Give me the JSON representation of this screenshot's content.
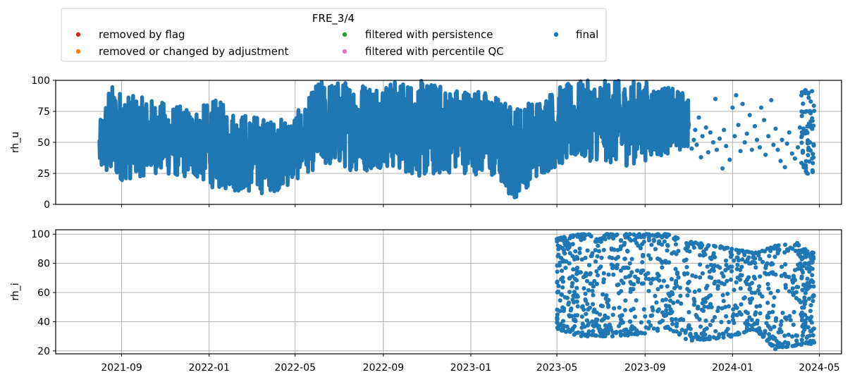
{
  "legend": {
    "title": "FRE_3/4",
    "entries": [
      {
        "label": "removed by flag",
        "color": "#d62728"
      },
      {
        "label": "removed or changed by adjustment",
        "color": "#ff7f0e"
      },
      {
        "label": "filtered with persistence",
        "color": "#2ca02c"
      },
      {
        "label": "filtered with percentile QC",
        "color": "#e377c2"
      },
      {
        "label": "final",
        "color": "#1f77b4"
      }
    ]
  },
  "chart_data": [
    {
      "type": "scatter",
      "ylabel": "rh_u",
      "ylim": [
        0,
        100
      ],
      "yticks": [
        0,
        25,
        50,
        75,
        100
      ],
      "ytick_labels": [
        "0",
        "25",
        "50",
        "75",
        "100"
      ],
      "xlim": [
        "2021-06-01",
        "2024-06-01"
      ],
      "xtick_labels": [
        "2021-09",
        "2022-01",
        "2022-05",
        "2022-09",
        "2023-01",
        "2023-05",
        "2023-09",
        "2024-01",
        "2024-05"
      ],
      "grid": true,
      "x_tick_labels_visible": false,
      "series": [
        {
          "name": "final",
          "color": "#1f77b4",
          "dense_range": {
            "start": "2021-08-01",
            "end": "2023-11-01"
          },
          "band": [
            [
              "2021-08-01",
              25,
              65
            ],
            [
              "2021-08-15",
              18,
              98
            ],
            [
              "2021-09-15",
              20,
              88
            ],
            [
              "2021-10-15",
              25,
              85
            ],
            [
              "2021-11-15",
              22,
              80
            ],
            [
              "2021-12-15",
              20,
              78
            ],
            [
              "2022-01-10",
              12,
              85
            ],
            [
              "2022-02-10",
              10,
              75
            ],
            [
              "2022-03-10",
              8,
              72
            ],
            [
              "2022-04-01",
              10,
              68
            ],
            [
              "2022-04-25",
              15,
              72
            ],
            [
              "2022-05-15",
              25,
              80
            ],
            [
              "2022-06-01",
              28,
              100
            ],
            [
              "2022-07-01",
              30,
              100
            ],
            [
              "2022-08-01",
              25,
              100
            ],
            [
              "2022-09-01",
              30,
              100
            ],
            [
              "2022-10-01",
              25,
              100
            ],
            [
              "2022-11-01",
              20,
              100
            ],
            [
              "2022-12-01",
              25,
              95
            ],
            [
              "2023-01-01",
              25,
              95
            ],
            [
              "2023-02-01",
              20,
              90
            ],
            [
              "2023-03-01",
              3,
              80
            ],
            [
              "2023-04-01",
              20,
              85
            ],
            [
              "2023-05-01",
              30,
              95
            ],
            [
              "2023-06-01",
              35,
              100
            ],
            [
              "2023-07-01",
              35,
              100
            ],
            [
              "2023-08-01",
              30,
              100
            ],
            [
              "2023-09-01",
              35,
              100
            ],
            [
              "2023-10-01",
              40,
              95
            ],
            [
              "2023-11-01",
              45,
              90
            ]
          ],
          "sparse_points": [
            [
              "2023-11-05",
              45
            ],
            [
              "2023-11-08",
              52
            ],
            [
              "2023-11-10",
              60
            ],
            [
              "2023-11-12",
              48
            ],
            [
              "2023-11-15",
              70
            ],
            [
              "2023-11-18",
              38
            ],
            [
              "2023-11-20",
              55
            ],
            [
              "2023-11-25",
              62
            ],
            [
              "2023-11-28",
              42
            ],
            [
              "2023-12-01",
              58
            ],
            [
              "2023-12-05",
              50
            ],
            [
              "2023-12-08",
              85
            ],
            [
              "2023-12-10",
              44
            ],
            [
              "2023-12-14",
              53
            ],
            [
              "2023-12-18",
              29
            ],
            [
              "2023-12-20",
              60
            ],
            [
              "2023-12-23",
              47
            ],
            [
              "2023-12-28",
              36
            ],
            [
              "2024-01-01",
              78
            ],
            [
              "2024-01-04",
              55
            ],
            [
              "2024-01-06",
              88
            ],
            [
              "2024-01-09",
              64
            ],
            [
              "2024-01-12",
              43
            ],
            [
              "2024-01-15",
              81
            ],
            [
              "2024-01-18",
              50
            ],
            [
              "2024-01-21",
              57
            ],
            [
              "2024-01-25",
              72
            ],
            [
              "2024-01-28",
              44
            ],
            [
              "2024-02-01",
              63
            ],
            [
              "2024-02-04",
              52
            ],
            [
              "2024-02-08",
              46
            ],
            [
              "2024-02-10",
              78
            ],
            [
              "2024-02-14",
              68
            ],
            [
              "2024-02-16",
              40
            ],
            [
              "2024-02-20",
              55
            ],
            [
              "2024-02-24",
              84
            ],
            [
              "2024-02-27",
              48
            ],
            [
              "2024-03-01",
              61
            ],
            [
              "2024-03-04",
              44
            ],
            [
              "2024-03-08",
              35
            ],
            [
              "2024-03-10",
              52
            ],
            [
              "2024-03-14",
              30
            ],
            [
              "2024-03-17",
              49
            ],
            [
              "2024-03-20",
              58
            ],
            [
              "2024-03-24",
              41
            ],
            [
              "2024-03-28",
              37
            ],
            [
              "2024-04-01",
              46
            ],
            [
              "2024-04-04",
              62
            ]
          ],
          "end_cluster": {
            "start": "2024-04-06",
            "end": "2024-04-24",
            "min": 24,
            "max": 94
          }
        }
      ]
    },
    {
      "type": "scatter",
      "ylabel": "rh_i",
      "ylim": [
        18,
        103
      ],
      "yticks": [
        20,
        40,
        60,
        80,
        100
      ],
      "ytick_labels": [
        "20",
        "40",
        "60",
        "80",
        "100"
      ],
      "xlim": [
        "2021-06-01",
        "2024-06-01"
      ],
      "xtick_labels": [
        "2021-09",
        "2022-01",
        "2022-05",
        "2022-09",
        "2023-01",
        "2023-05",
        "2023-09",
        "2024-01",
        "2024-05"
      ],
      "grid": true,
      "series": [
        {
          "name": "final",
          "color": "#1f77b4",
          "range": {
            "start": "2023-05-01",
            "end": "2024-04-24"
          },
          "band": [
            [
              "2023-05-01",
              35,
              97
            ],
            [
              "2023-06-01",
              30,
              100
            ],
            [
              "2023-07-01",
              30,
              100
            ],
            [
              "2023-08-01",
              30,
              100
            ],
            [
              "2023-09-01",
              32,
              100
            ],
            [
              "2023-10-01",
              35,
              100
            ],
            [
              "2023-11-01",
              27,
              95
            ],
            [
              "2023-12-01",
              28,
              93
            ],
            [
              "2024-01-01",
              30,
              90
            ],
            [
              "2024-02-01",
              35,
              87
            ],
            [
              "2024-03-01",
              21,
              92
            ],
            [
              "2024-04-01",
              24,
              94
            ],
            [
              "2024-04-24",
              25,
              85
            ]
          ]
        }
      ]
    }
  ]
}
